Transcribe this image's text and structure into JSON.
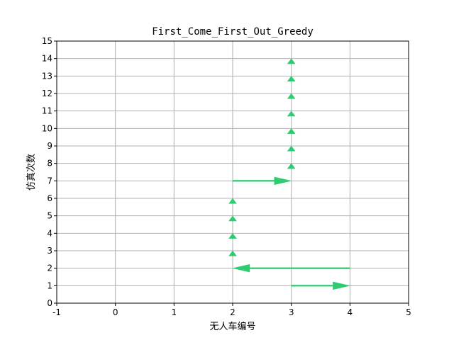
{
  "chart_data": {
    "type": "quiver",
    "title": "First_Come_First_Out_Greedy",
    "xlabel": "无人车编号",
    "ylabel": "仿真次数",
    "xlim": [
      -1,
      5
    ],
    "ylim": [
      0,
      15
    ],
    "xticks": [
      -1,
      0,
      1,
      2,
      3,
      4,
      5
    ],
    "yticks": [
      0,
      1,
      2,
      3,
      4,
      5,
      6,
      7,
      8,
      9,
      10,
      11,
      12,
      13,
      14,
      15
    ],
    "grid": true,
    "arrow_color": "#2ecc71",
    "arrows": [
      {
        "x": 3,
        "y": 1,
        "dx": 1,
        "dy": 0
      },
      {
        "x": 4,
        "y": 2,
        "dx": -2,
        "dy": 0
      },
      {
        "x": 2,
        "y": 2.7,
        "dx": 0,
        "dy": 0.3
      },
      {
        "x": 2,
        "y": 3.7,
        "dx": 0,
        "dy": 0.3
      },
      {
        "x": 2,
        "y": 4.7,
        "dx": 0,
        "dy": 0.3
      },
      {
        "x": 2,
        "y": 5.7,
        "dx": 0,
        "dy": 0.3
      },
      {
        "x": 2,
        "y": 7,
        "dx": 1,
        "dy": 0
      },
      {
        "x": 3,
        "y": 7.7,
        "dx": 0,
        "dy": 0.3
      },
      {
        "x": 3,
        "y": 8.7,
        "dx": 0,
        "dy": 0.3
      },
      {
        "x": 3,
        "y": 9.7,
        "dx": 0,
        "dy": 0.3
      },
      {
        "x": 3,
        "y": 10.7,
        "dx": 0,
        "dy": 0.3
      },
      {
        "x": 3,
        "y": 11.7,
        "dx": 0,
        "dy": 0.3
      },
      {
        "x": 3,
        "y": 12.7,
        "dx": 0,
        "dy": 0.3
      },
      {
        "x": 3,
        "y": 13.7,
        "dx": 0,
        "dy": 0.3
      }
    ]
  }
}
